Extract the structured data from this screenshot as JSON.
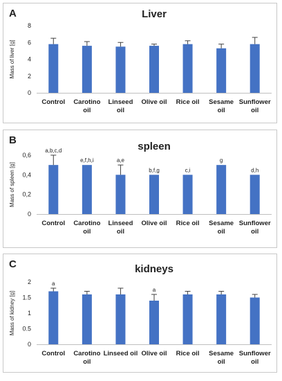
{
  "colors": {
    "bar": "#4472c4",
    "axis": "#bfbfbf",
    "error": "#404040"
  },
  "chart_data": [
    {
      "type": "bar",
      "panel_letter": "A",
      "title": "Liver",
      "ylabel": "Mass of liver [g]",
      "xlabel": "",
      "ylim": [
        0,
        8
      ],
      "yticks": [
        "0",
        "2",
        "4",
        "6",
        "8"
      ],
      "categories": [
        "Control",
        "Carotino oil",
        "Linseed oil",
        "Olive oil",
        "Rice oil",
        "Sesame oil",
        "Sunflower oil"
      ],
      "category_lines": [
        [
          "Control"
        ],
        [
          "Carotino",
          "oil"
        ],
        [
          "Linseed",
          "oil"
        ],
        [
          "Olive oil"
        ],
        [
          "Rice oil"
        ],
        [
          "Sesame",
          "oil"
        ],
        [
          "Sunflower",
          "oil"
        ]
      ],
      "values": [
        5.8,
        5.6,
        5.5,
        5.6,
        5.8,
        5.3,
        5.8
      ],
      "errors": [
        0.7,
        0.5,
        0.5,
        0.2,
        0.4,
        0.5,
        0.8
      ],
      "annotations": [
        "",
        "",
        "",
        "",
        "",
        "",
        ""
      ],
      "grid": false
    },
    {
      "type": "bar",
      "panel_letter": "B",
      "title": "spleen",
      "ylabel": "Mass of spleen [g]",
      "xlabel": "",
      "ylim": [
        0,
        0.6
      ],
      "yticks": [
        "0",
        "0,2",
        "0,4",
        "0,6"
      ],
      "categories": [
        "Control",
        "Carotino oil",
        "Linseed oil",
        "Olive oil",
        "Rice oil",
        "Sesame oil",
        "Sunflower oil"
      ],
      "category_lines": [
        [
          "Control"
        ],
        [
          "Carotino",
          "oil"
        ],
        [
          "Linseed",
          "oil"
        ],
        [
          "Olive oil"
        ],
        [
          "Rice oil"
        ],
        [
          "Sesame",
          "oil"
        ],
        [
          "Sunflower",
          "oil"
        ]
      ],
      "values": [
        0.5,
        0.5,
        0.4,
        0.4,
        0.4,
        0.5,
        0.4
      ],
      "errors": [
        0.1,
        0,
        0.1,
        0,
        0,
        0,
        0
      ],
      "annotations": [
        "a,b,c,d",
        "e,f,h,i",
        "a,e",
        "b,f,g",
        "c,i",
        "g",
        "d,h"
      ],
      "grid": false
    },
    {
      "type": "bar",
      "panel_letter": "C",
      "title": "kidneys",
      "ylabel": "Mass of kidney [g]",
      "xlabel": "",
      "ylim": [
        0,
        2
      ],
      "yticks": [
        "0",
        "0.5",
        "1",
        "1.5",
        "2"
      ],
      "categories": [
        "Control",
        "Carotino oil",
        "Linseed oil",
        "Olive oil",
        "Rice oil",
        "Sesame oil",
        "Sunflower oil"
      ],
      "category_lines": [
        [
          "Control"
        ],
        [
          "Carotino",
          "oil"
        ],
        [
          "Linseed oil"
        ],
        [
          "Olive oil"
        ],
        [
          "Rice oil"
        ],
        [
          "Sesame",
          "oil"
        ],
        [
          "Sunflower",
          "oil"
        ]
      ],
      "values": [
        1.7,
        1.6,
        1.6,
        1.4,
        1.6,
        1.6,
        1.5
      ],
      "errors": [
        0.1,
        0.1,
        0.2,
        0.2,
        0.1,
        0.1,
        0.1
      ],
      "annotations": [
        "a",
        "",
        "",
        "a",
        "",
        "",
        ""
      ],
      "grid": false
    }
  ]
}
